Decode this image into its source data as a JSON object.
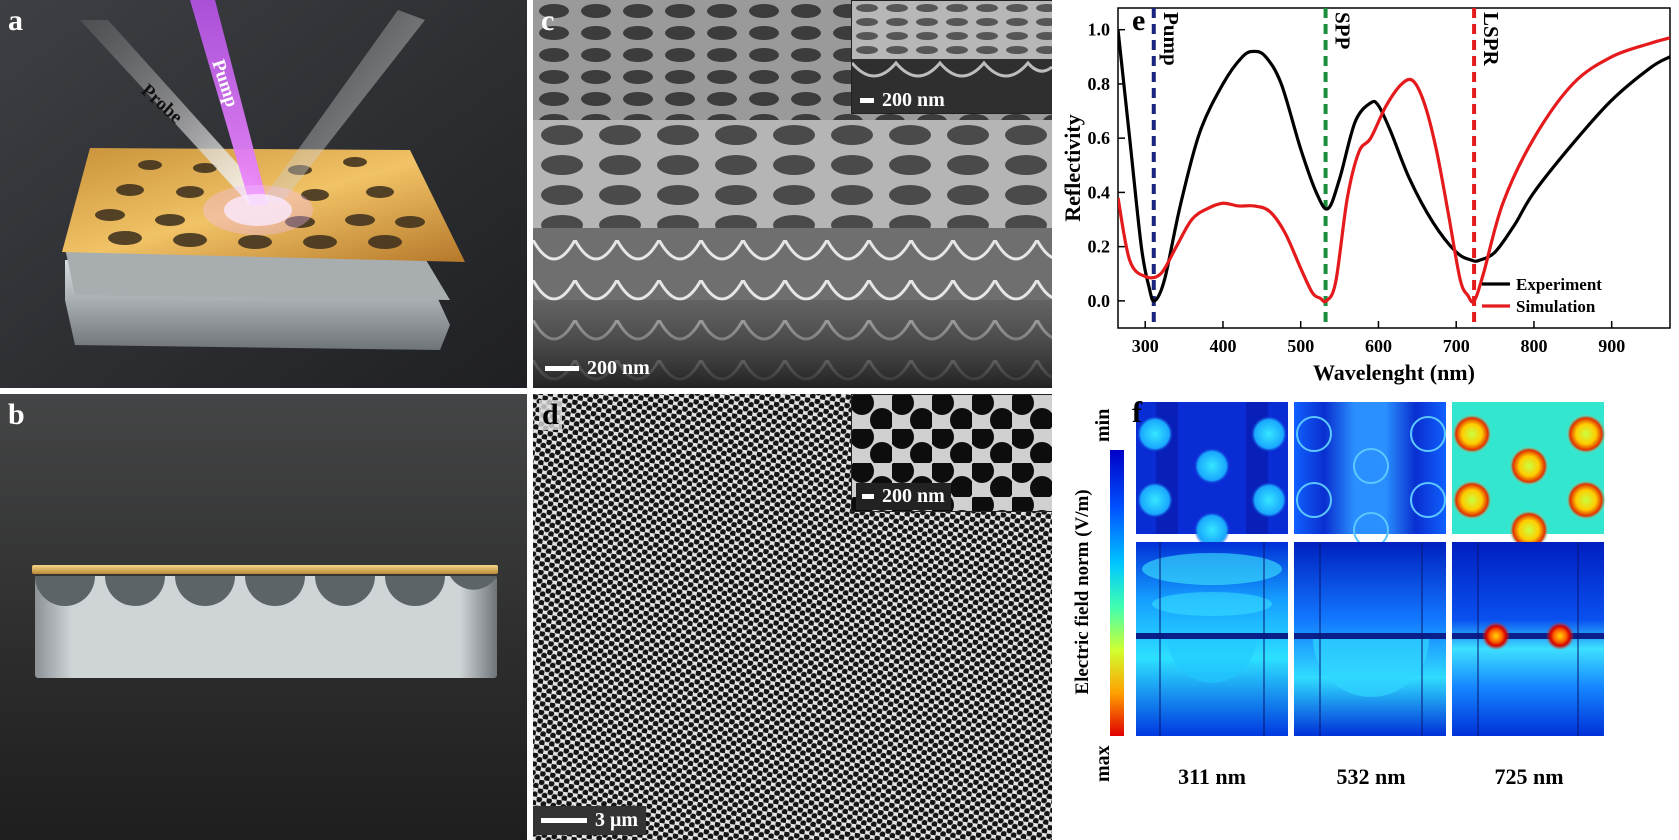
{
  "panels": {
    "a": {
      "label": "a",
      "beams": {
        "probe": "Probe",
        "pump": "Pump"
      }
    },
    "b": {
      "label": "b"
    },
    "c": {
      "label": "c",
      "scale_main": "200 nm",
      "scale_inset": "200 nm"
    },
    "d": {
      "label": "d",
      "scale_main": "3 μm",
      "scale_inset": "200 nm"
    },
    "e": {
      "label": "e"
    },
    "f": {
      "label": "f",
      "colorbar_title": "Electric field norm (V/m)",
      "colorbar_min": "min",
      "colorbar_max": "max",
      "wavelengths": [
        "311 nm",
        "532 nm",
        "725 nm"
      ]
    }
  },
  "chart_data": {
    "type": "line",
    "xlabel": "Wavelenght (nm)",
    "ylabel": "Reflectivity",
    "xlim": [
      265,
      975
    ],
    "ylim": [
      -0.1,
      1.08
    ],
    "xticks": [
      300,
      400,
      500,
      600,
      700,
      800,
      900
    ],
    "yticks": [
      0.0,
      0.2,
      0.4,
      0.6,
      0.8,
      1.0
    ],
    "legend_position": "bottom-right",
    "series": [
      {
        "name": "Experiment",
        "color": "#000000",
        "x": [
          265,
          280,
          295,
          305,
          312,
          325,
          345,
          370,
          400,
          425,
          440,
          455,
          475,
          500,
          520,
          535,
          550,
          570,
          590,
          600,
          615,
          640,
          670,
          700,
          720,
          730,
          750,
          775,
          800,
          850,
          900,
          950,
          975
        ],
        "y": [
          1.0,
          0.6,
          0.2,
          0.05,
          0.0,
          0.08,
          0.35,
          0.62,
          0.8,
          0.9,
          0.92,
          0.9,
          0.8,
          0.56,
          0.4,
          0.34,
          0.45,
          0.66,
          0.73,
          0.72,
          0.63,
          0.45,
          0.29,
          0.18,
          0.15,
          0.15,
          0.18,
          0.28,
          0.4,
          0.58,
          0.74,
          0.86,
          0.9
        ]
      },
      {
        "name": "Simulation",
        "color": "#e41a1c",
        "x": [
          265,
          280,
          300,
          320,
          340,
          360,
          380,
          400,
          420,
          440,
          460,
          480,
          500,
          515,
          525,
          533,
          545,
          560,
          575,
          590,
          610,
          630,
          645,
          660,
          675,
          690,
          705,
          715,
          723,
          735,
          760,
          800,
          850,
          900,
          950,
          975
        ],
        "y": [
          0.38,
          0.15,
          0.09,
          0.1,
          0.2,
          0.3,
          0.34,
          0.36,
          0.35,
          0.35,
          0.33,
          0.25,
          0.12,
          0.03,
          0.01,
          0.0,
          0.07,
          0.38,
          0.55,
          0.6,
          0.72,
          0.8,
          0.81,
          0.72,
          0.55,
          0.32,
          0.08,
          0.02,
          0.0,
          0.1,
          0.36,
          0.6,
          0.8,
          0.9,
          0.95,
          0.97
        ]
      }
    ],
    "vlines": [
      {
        "x": 311,
        "label": "Pump",
        "color": "#1a237e"
      },
      {
        "x": 532,
        "label": "SPP",
        "color": "#1b8e3e"
      },
      {
        "x": 723,
        "label": "LSPR",
        "color": "#e41a1c"
      }
    ]
  }
}
